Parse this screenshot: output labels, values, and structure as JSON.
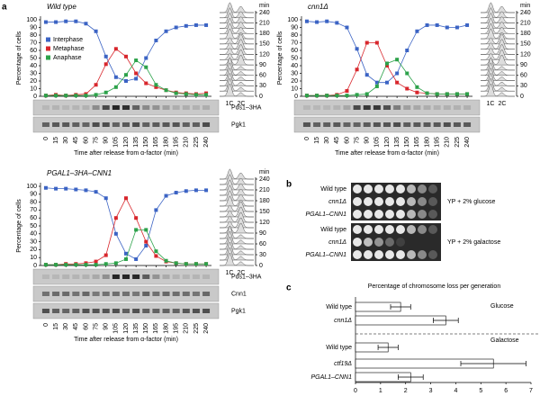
{
  "panel_labels": [
    "a",
    "b",
    "c"
  ],
  "chart_data": [
    {
      "type": "line",
      "title": "Wild type",
      "ylabel": "Percentage of cells",
      "xlabel": "Time after release from α-factor (min)",
      "x": [
        0,
        15,
        30,
        45,
        60,
        75,
        90,
        105,
        120,
        135,
        150,
        165,
        180,
        195,
        210,
        225,
        240
      ],
      "xlim": [
        -8,
        248
      ],
      "xticks": [
        0,
        15,
        30,
        45,
        60,
        75,
        90,
        105,
        120,
        135,
        150,
        165,
        180,
        195,
        210,
        225,
        240
      ],
      "ylim": [
        0,
        100
      ],
      "yticks": [
        0,
        10,
        20,
        30,
        40,
        50,
        60,
        70,
        80,
        90,
        100
      ],
      "legend": "upper left",
      "series": [
        {
          "name": "Interphase",
          "color": "#3b63c4",
          "values": [
            97,
            97,
            98,
            98,
            95,
            85,
            52,
            25,
            20,
            23,
            50,
            73,
            85,
            90,
            92,
            93,
            93
          ]
        },
        {
          "name": "Metaphase",
          "color": "#d8262c",
          "values": [
            1,
            2,
            1,
            2,
            3,
            15,
            42,
            62,
            52,
            30,
            17,
            12,
            8,
            5,
            4,
            3,
            4
          ]
        },
        {
          "name": "Anaphase",
          "color": "#2ca24a",
          "values": [
            1,
            1,
            1,
            1,
            1,
            2,
            5,
            12,
            28,
            47,
            38,
            15,
            8,
            4,
            3,
            2,
            2
          ]
        }
      ]
    },
    {
      "type": "line",
      "title": "cnn1Δ",
      "ylabel": "Percentage of cells",
      "xlabel": "Time after release from α-factor (min)",
      "x": [
        0,
        15,
        30,
        45,
        60,
        75,
        90,
        105,
        120,
        135,
        150,
        165,
        180,
        195,
        210,
        225,
        240
      ],
      "xlim": [
        -8,
        248
      ],
      "xticks": [
        0,
        15,
        30,
        45,
        60,
        75,
        90,
        105,
        120,
        135,
        150,
        165,
        180,
        195,
        210,
        225,
        240
      ],
      "ylim": [
        0,
        100
      ],
      "yticks": [
        0,
        10,
        20,
        30,
        40,
        50,
        60,
        70,
        80,
        90,
        100
      ],
      "series": [
        {
          "color": "#3b63c4",
          "values": [
            98,
            97,
            98,
            96,
            90,
            62,
            28,
            18,
            18,
            30,
            60,
            85,
            93,
            93,
            90,
            90,
            93
          ]
        },
        {
          "color": "#d8262c",
          "values": [
            1,
            1,
            1,
            2,
            7,
            35,
            70,
            70,
            40,
            18,
            10,
            5,
            4,
            3,
            3,
            3,
            3
          ]
        },
        {
          "color": "#2ca24a",
          "values": [
            1,
            1,
            1,
            1,
            1,
            2,
            3,
            13,
            43,
            48,
            30,
            12,
            4,
            3,
            3,
            3,
            3
          ]
        }
      ]
    },
    {
      "type": "line",
      "title": "PGAL1–3HA–CNN1",
      "ylabel": "Percentage of cells",
      "xlabel": "Time after release from α-factor (min)",
      "x": [
        0,
        15,
        30,
        45,
        60,
        75,
        90,
        105,
        120,
        135,
        150,
        165,
        180,
        195,
        210,
        225,
        240
      ],
      "xlim": [
        -8,
        248
      ],
      "xticks": [
        0,
        15,
        30,
        45,
        60,
        75,
        90,
        105,
        120,
        135,
        150,
        165,
        180,
        195,
        210,
        225,
        240
      ],
      "ylim": [
        0,
        100
      ],
      "yticks": [
        0,
        10,
        20,
        30,
        40,
        50,
        60,
        70,
        80,
        90,
        100
      ],
      "series": [
        {
          "color": "#3b63c4",
          "values": [
            98,
            97,
            97,
            96,
            95,
            93,
            85,
            40,
            15,
            8,
            25,
            70,
            88,
            92,
            94,
            95,
            95
          ]
        },
        {
          "color": "#d8262c",
          "values": [
            1,
            1,
            2,
            2,
            3,
            5,
            13,
            60,
            85,
            60,
            30,
            12,
            5,
            3,
            2,
            2,
            2
          ]
        },
        {
          "color": "#2ca24a",
          "values": [
            1,
            1,
            1,
            1,
            1,
            1,
            2,
            3,
            8,
            45,
            45,
            18,
            6,
            3,
            2,
            2,
            2
          ]
        }
      ]
    },
    {
      "type": "hbar",
      "title": "Percentage of chromosome loss per generation",
      "categories": [
        "Wild type",
        "cnn1Δ",
        "Wild type",
        "ctf19Δ",
        "PGAL1–CNN1"
      ],
      "values": [
        1.8,
        3.6,
        1.3,
        5.5,
        2.2
      ],
      "errors": [
        0.4,
        0.5,
        0.4,
        1.3,
        0.5
      ],
      "xlim": [
        0,
        7
      ],
      "xticks": [
        0,
        1,
        2,
        3,
        4,
        5,
        6,
        7
      ],
      "annotations": [
        "Glucose",
        "Galactose"
      ]
    }
  ],
  "blots": [
    [
      "Pds1–3HA",
      "Pgk1"
    ],
    [
      "Pds1–3HA",
      "Cnn1",
      "Pgk1"
    ]
  ],
  "flow": {
    "unit": "min",
    "yticks": [
      0,
      30,
      60,
      90,
      120,
      150,
      180,
      210,
      240
    ],
    "ylim": [
      0,
      240
    ],
    "labels": [
      "1C",
      "2C"
    ]
  },
  "spot_assay": {
    "strains": [
      "Wild type",
      "cnn1Δ",
      "PGAL1–CNN1"
    ],
    "media": [
      "YP + 2% glucose",
      "YP + 2% galactose"
    ]
  }
}
